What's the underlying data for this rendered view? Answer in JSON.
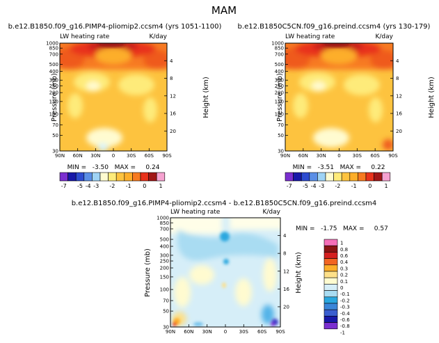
{
  "figure": {
    "title": "MAM"
  },
  "chart_data": [
    {
      "type": "heatmap",
      "title": "b.e12.B1850.f09_g16.PIMP4-pliomip2.ccsm4 (yrs 1051-1100)",
      "left_label": "LW heating rate",
      "right_label": "K/day",
      "ylabel": "Pressure (mb)",
      "ylabel_right": "Height (km)",
      "x_ticks": [
        "90N",
        "60N",
        "30N",
        "0",
        "30S",
        "60S",
        "90S"
      ],
      "y_ticks": [
        "1000",
        "850",
        "700",
        "500",
        "400",
        "300",
        "250",
        "200",
        "150",
        "100",
        "70",
        "50",
        "30"
      ],
      "height_ticks": [
        "4",
        "8",
        "12",
        "16",
        "20"
      ],
      "stats": "MIN =   -3.50   MAX =     0.24",
      "contour_levels": [
        -7,
        -6,
        -5,
        -4,
        -3,
        -2.5,
        -2,
        -1.5,
        -1,
        -0.5,
        0,
        0.5,
        1
      ],
      "colorbar_labels": [
        "-7",
        "-5",
        "-4",
        "-3",
        "-2",
        "-1",
        "0",
        "1"
      ]
    },
    {
      "type": "heatmap",
      "title": "b.e12.B1850C5CN.f09_g16.preind.ccsm4 (yrs 130-179)",
      "left_label": "LW heating rate",
      "right_label": "K/day",
      "ylabel": "Pressure (mb)",
      "ylabel_right": "Height (km)",
      "x_ticks": [
        "90N",
        "60N",
        "30N",
        "0",
        "30S",
        "60S",
        "90S"
      ],
      "y_ticks": [
        "1000",
        "850",
        "700",
        "500",
        "400",
        "300",
        "250",
        "200",
        "150",
        "100",
        "70",
        "50",
        "30"
      ],
      "height_ticks": [
        "4",
        "8",
        "12",
        "16",
        "20"
      ],
      "stats": "MIN =   -3.51   MAX =     0.22",
      "contour_levels": [
        -7,
        -6,
        -5,
        -4,
        -3,
        -2.5,
        -2,
        -1.5,
        -1,
        -0.5,
        0,
        0.5,
        1
      ],
      "colorbar_labels": [
        "-7",
        "-5",
        "-4",
        "-3",
        "-2",
        "-1",
        "0",
        "1"
      ]
    },
    {
      "type": "heatmap",
      "title": "b.e12.B1850.f09_g16.PIMP4-pliomip2.ccsm4 - b.e12.B1850C5CN.f09_g16.preind.ccsm4",
      "left_label": "LW heating rate",
      "right_label": "K/day",
      "ylabel": "Pressure (mb)",
      "ylabel_right": "Height (km)",
      "x_ticks": [
        "90N",
        "60N",
        "30N",
        "0",
        "30S",
        "60S",
        "90S"
      ],
      "y_ticks": [
        "1000",
        "850",
        "700",
        "500",
        "400",
        "300",
        "250",
        "200",
        "150",
        "100",
        "70",
        "50",
        "30"
      ],
      "height_ticks": [
        "4",
        "8",
        "12",
        "16",
        "20"
      ],
      "stats": "MIN =   -1.75   MAX =     0.57",
      "contour_levels": [
        -1,
        -0.8,
        -0.6,
        -0.4,
        -0.3,
        -0.2,
        -0.1,
        0,
        0.1,
        0.2,
        0.3,
        0.4,
        0.6,
        0.8,
        1
      ],
      "colorbar_labels": [
        "1",
        "0.8",
        "0.6",
        "0.4",
        "0.3",
        "0.2",
        "0.1",
        "0",
        "-0.1",
        "-0.2",
        "-0.3",
        "-0.4",
        "-0.6",
        "-0.8",
        "-1"
      ]
    }
  ]
}
